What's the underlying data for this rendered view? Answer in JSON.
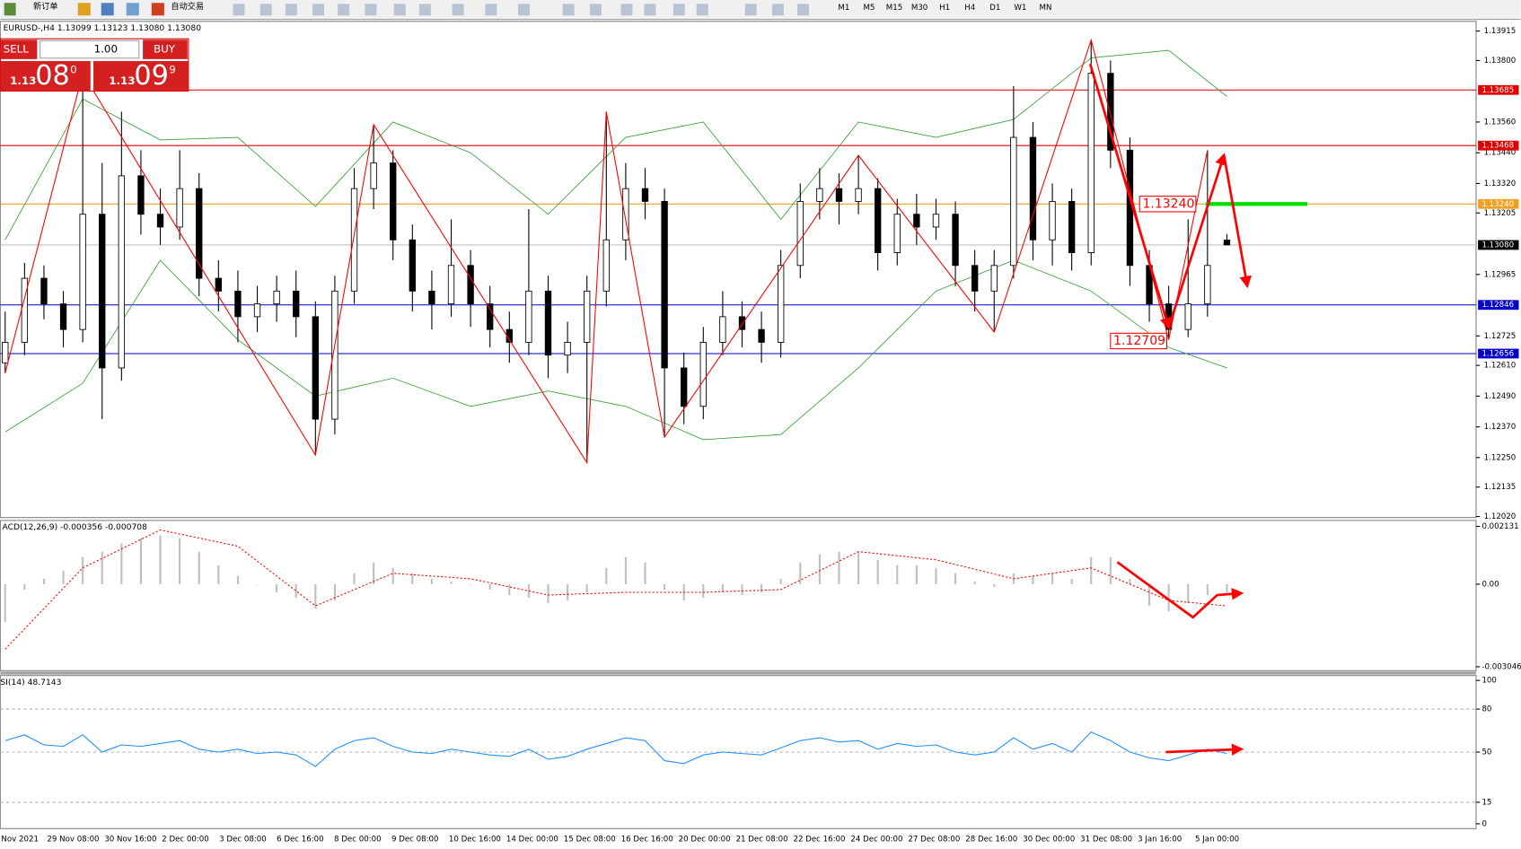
{
  "toolbar": {
    "items": [
      "新订单",
      "自动交易"
    ],
    "timeframes": [
      "M1",
      "M5",
      "M15",
      "M30",
      "H1",
      "H4",
      "D1",
      "W1",
      "MN"
    ]
  },
  "trade_panel": {
    "sell": "SELL",
    "buy": "BUY",
    "lot": "1.00",
    "bid": {
      "big": "1.13",
      "main": "08",
      "small": "0"
    },
    "ask": {
      "big": "1.13",
      "main": "09",
      "small": "9"
    }
  },
  "chart": {
    "header": "EURUSD-,H4 1.13099 1.13123 1.13080 1.13080",
    "ylim": [
      1.12016,
      1.13953
    ],
    "yticks": [
      1.13915,
      {
        "value": 1.138,
        "label": "1.13800"
      },
      {
        "value": 1.1356,
        "label": "1.13560"
      },
      {
        "value": 1.1344,
        "label": "1.13440"
      },
      {
        "value": 1.1332,
        "label": "1.13320"
      },
      1.13205,
      1.12965,
      1.12725,
      {
        "value": 1.1261,
        "label": "1.12610"
      },
      {
        "value": 1.1249,
        "label": "1.12490"
      },
      {
        "value": 1.1237,
        "label": "1.12370"
      },
      {
        "value": 1.1225,
        "label": "1.12250"
      },
      1.12135,
      {
        "value": 1.1202,
        "label": "1.12020"
      }
    ],
    "levels": [
      {
        "value": 1.13685,
        "label": "1.13685",
        "line_color": "#e00000",
        "box_color": "#e00000"
      },
      {
        "value": 1.13468,
        "label": "1.13468",
        "line_color": "#e00000",
        "box_color": "#e00000"
      },
      {
        "value": 1.1324,
        "label": "1.13240",
        "line_color": "#f0a020",
        "box_color": "#f0a020"
      },
      {
        "value": 1.1308,
        "label": "1.13080",
        "line_color": "#c0c0c0",
        "box_color": "#000000"
      },
      {
        "value": 1.12846,
        "label": "1.12846",
        "line_color": "#0000c8",
        "box_color": "#0000c8"
      },
      {
        "value": 1.12656,
        "label": "1.12656",
        "line_color": "#0000c8",
        "box_color": "#0000c8"
      }
    ],
    "candles": [
      [
        1.1262,
        1.1282,
        1.1258,
        1.127
      ],
      [
        1.127,
        1.1301,
        1.1265,
        1.1295
      ],
      [
        1.1295,
        1.13,
        1.1279,
        1.1285
      ],
      [
        1.1285,
        1.129,
        1.1268,
        1.1275
      ],
      [
        1.1275,
        1.1375,
        1.127,
        1.132
      ],
      [
        1.132,
        1.134,
        1.124,
        1.126
      ],
      [
        1.126,
        1.136,
        1.1255,
        1.1335
      ],
      [
        1.1335,
        1.1345,
        1.1312,
        1.132
      ],
      [
        1.132,
        1.133,
        1.1308,
        1.1315
      ],
      [
        1.1315,
        1.1345,
        1.131,
        1.133
      ],
      [
        1.133,
        1.1336,
        1.1288,
        1.1295
      ],
      [
        1.1295,
        1.1302,
        1.1282,
        1.129
      ],
      [
        1.129,
        1.1298,
        1.127,
        1.128
      ],
      [
        1.128,
        1.1292,
        1.1274,
        1.1285
      ],
      [
        1.1285,
        1.1296,
        1.1278,
        1.129
      ],
      [
        1.129,
        1.1298,
        1.1272,
        1.128
      ],
      [
        1.128,
        1.1286,
        1.1226,
        1.124
      ],
      [
        1.124,
        1.1296,
        1.1234,
        1.129
      ],
      [
        1.129,
        1.1338,
        1.1285,
        1.133
      ],
      [
        1.133,
        1.1355,
        1.1322,
        1.134
      ],
      [
        1.134,
        1.1345,
        1.1302,
        1.131
      ],
      [
        1.131,
        1.1316,
        1.1282,
        1.129
      ],
      [
        1.129,
        1.1298,
        1.1275,
        1.1285
      ],
      [
        1.1285,
        1.1318,
        1.128,
        1.13
      ],
      [
        1.13,
        1.1306,
        1.1276,
        1.1285
      ],
      [
        1.1285,
        1.1292,
        1.1268,
        1.1275
      ],
      [
        1.1275,
        1.1282,
        1.1262,
        1.127
      ],
      [
        1.127,
        1.1322,
        1.1265,
        1.129
      ],
      [
        1.129,
        1.1296,
        1.1256,
        1.1265
      ],
      [
        1.1265,
        1.1278,
        1.1258,
        1.127
      ],
      [
        1.127,
        1.1296,
        1.1223,
        1.129
      ],
      [
        1.129,
        1.136,
        1.1284,
        1.131
      ],
      [
        1.131,
        1.134,
        1.1302,
        1.133
      ],
      [
        1.133,
        1.1338,
        1.1318,
        1.1325
      ],
      [
        1.1325,
        1.133,
        1.1233,
        1.126
      ],
      [
        1.126,
        1.1266,
        1.1238,
        1.1245
      ],
      [
        1.1245,
        1.1276,
        1.124,
        1.127
      ],
      [
        1.127,
        1.129,
        1.1265,
        1.128
      ],
      [
        1.128,
        1.1286,
        1.1268,
        1.1275
      ],
      [
        1.1275,
        1.1282,
        1.1262,
        1.127
      ],
      [
        1.127,
        1.1306,
        1.1264,
        1.13
      ],
      [
        1.13,
        1.1332,
        1.1295,
        1.1325
      ],
      [
        1.1325,
        1.1338,
        1.1318,
        1.133
      ],
      [
        1.133,
        1.1336,
        1.1316,
        1.1325
      ],
      [
        1.1325,
        1.1343,
        1.132,
        1.133
      ],
      [
        1.133,
        1.1334,
        1.1298,
        1.1305
      ],
      [
        1.1305,
        1.1326,
        1.13,
        1.132
      ],
      [
        1.132,
        1.1328,
        1.1308,
        1.1315
      ],
      [
        1.1315,
        1.1326,
        1.131,
        1.132
      ],
      [
        1.132,
        1.1325,
        1.1292,
        1.13
      ],
      [
        1.13,
        1.1306,
        1.1282,
        1.129
      ],
      [
        1.129,
        1.1306,
        1.1274,
        1.13
      ],
      [
        1.13,
        1.137,
        1.1295,
        1.135
      ],
      [
        1.135,
        1.1356,
        1.1302,
        1.131
      ],
      [
        1.131,
        1.1332,
        1.13,
        1.1325
      ],
      [
        1.1325,
        1.133,
        1.1298,
        1.1305
      ],
      [
        1.1305,
        1.1388,
        1.13,
        1.1375
      ],
      [
        1.1375,
        1.138,
        1.1338,
        1.1345
      ],
      [
        1.1345,
        1.135,
        1.1292,
        1.13
      ],
      [
        1.13,
        1.1306,
        1.1278,
        1.1285
      ],
      [
        1.1285,
        1.1292,
        1.1271,
        1.1275
      ],
      [
        1.1275,
        1.1318,
        1.1272,
        1.1285
      ],
      [
        1.1285,
        1.1345,
        1.128,
        1.13
      ],
      [
        1.13099,
        1.13123,
        1.1308,
        1.1308
      ]
    ],
    "sample_bars": [
      0,
      4,
      8,
      12,
      16,
      20,
      24,
      28,
      32,
      36,
      40,
      44,
      48,
      52,
      56,
      60,
      63
    ],
    "band_upper": [
      1.131,
      1.1365,
      1.1349,
      1.135,
      1.1323,
      1.1356,
      1.1344,
      1.132,
      1.135,
      1.1356,
      1.1318,
      1.1356,
      1.135,
      1.1357,
      1.1381,
      1.1384,
      1.1366
    ],
    "band_lower": [
      1.1235,
      1.1254,
      1.1302,
      1.1271,
      1.1249,
      1.1256,
      1.1245,
      1.1251,
      1.1245,
      1.1232,
      1.1234,
      1.126,
      1.129,
      1.1302,
      1.129,
      1.1268,
      1.126
    ],
    "zigzag_bars": [
      0,
      4,
      16,
      19,
      30,
      31,
      34,
      44,
      51,
      56,
      60,
      62
    ],
    "zigzag_prices": [
      1.1258,
      1.1375,
      1.1226,
      1.1355,
      1.1223,
      1.136,
      1.1233,
      1.1343,
      1.1274,
      1.1388,
      1.1271,
      1.1345
    ],
    "annotations": [
      "1.13240",
      "1.12709"
    ],
    "time_labels": [
      "Nov 2021",
      "29 Nov 08:00",
      "30 Nov 16:00",
      "2 Dec 00:00",
      "3 Dec 08:00",
      "6 Dec 16:00",
      "8 Dec 00:00",
      "9 Dec 08:00",
      "10 Dec 16:00",
      "14 Dec 00:00",
      "15 Dec 08:00",
      "16 Dec 16:00",
      "20 Dec 00:00",
      "21 Dec 08:00",
      "22 Dec 16:00",
      "24 Dec 00:00",
      "27 Dec 08:00",
      "28 Dec 16:00",
      "30 Dec 00:00",
      "31 Dec 08:00",
      "3 Jan 16:00",
      "5 Jan 00:00"
    ]
  },
  "macd": {
    "header": "ACD(12,26,9) -0.000356 -0.000708",
    "ylim": [
      -0.00319,
      0.00235
    ],
    "yticks": [
      0.002131,
      {
        "value": 0,
        "label": "0.00"
      },
      -0.003046
    ],
    "histogram": [
      -0.0014,
      -0.0002,
      0.0002,
      0.0005,
      0.001,
      0.0012,
      0.0015,
      0.0017,
      0.0018,
      0.0017,
      0.0012,
      0.0007,
      0.0003,
      0,
      -0.0003,
      -0.0005,
      -0.0009,
      -0.0006,
      0.0004,
      0.0008,
      0.0006,
      0.0004,
      0.0002,
      0.0001,
      0,
      -0.0002,
      -0.0004,
      -0.0005,
      -0.0007,
      -0.0006,
      -0.0003,
      0.0006,
      0.001,
      0.0008,
      -0.0002,
      -0.0006,
      -0.0005,
      -0.0003,
      -0.0004,
      -0.0003,
      0.0002,
      0.0008,
      0.0011,
      0.0012,
      0.0012,
      0.0009,
      0.0007,
      0.0007,
      0.0006,
      0.0004,
      0.0001,
      -0.0001,
      0.0004,
      0.0003,
      0.0004,
      0.0002,
      0.001,
      0.001,
      0.0002,
      -0.0008,
      -0.001,
      -0.0007,
      -0.0004,
      -0.0003
    ],
    "signal": [
      -0.0024,
      0.0006,
      0.002,
      0.0014,
      -0.0008,
      0.0004,
      0.0002,
      -0.0004,
      -0.0003,
      -0.0003,
      -0.0002,
      0.0012,
      0.0009,
      0.0002,
      0.0006,
      -0.0006,
      -0.0008
    ]
  },
  "rsi": {
    "header": "SI(14) 48.7143",
    "ylim": [
      -3.4,
      103.4
    ],
    "yticks": [
      100,
      80,
      50,
      15,
      0
    ],
    "levels": [
      80,
      50,
      15
    ],
    "values": [
      58,
      62,
      55,
      54,
      62,
      50,
      55,
      54,
      56,
      58,
      52,
      50,
      52,
      49,
      50,
      48,
      40,
      52,
      58,
      60,
      54,
      50,
      49,
      52,
      50,
      48,
      47,
      52,
      45,
      47,
      52,
      56,
      60,
      58,
      44,
      42,
      48,
      50,
      49,
      48,
      53,
      58,
      60,
      57,
      58,
      52,
      56,
      54,
      55,
      50,
      48,
      50,
      60,
      52,
      56,
      50,
      64,
      58,
      50,
      46,
      44,
      48,
      52,
      49
    ]
  }
}
